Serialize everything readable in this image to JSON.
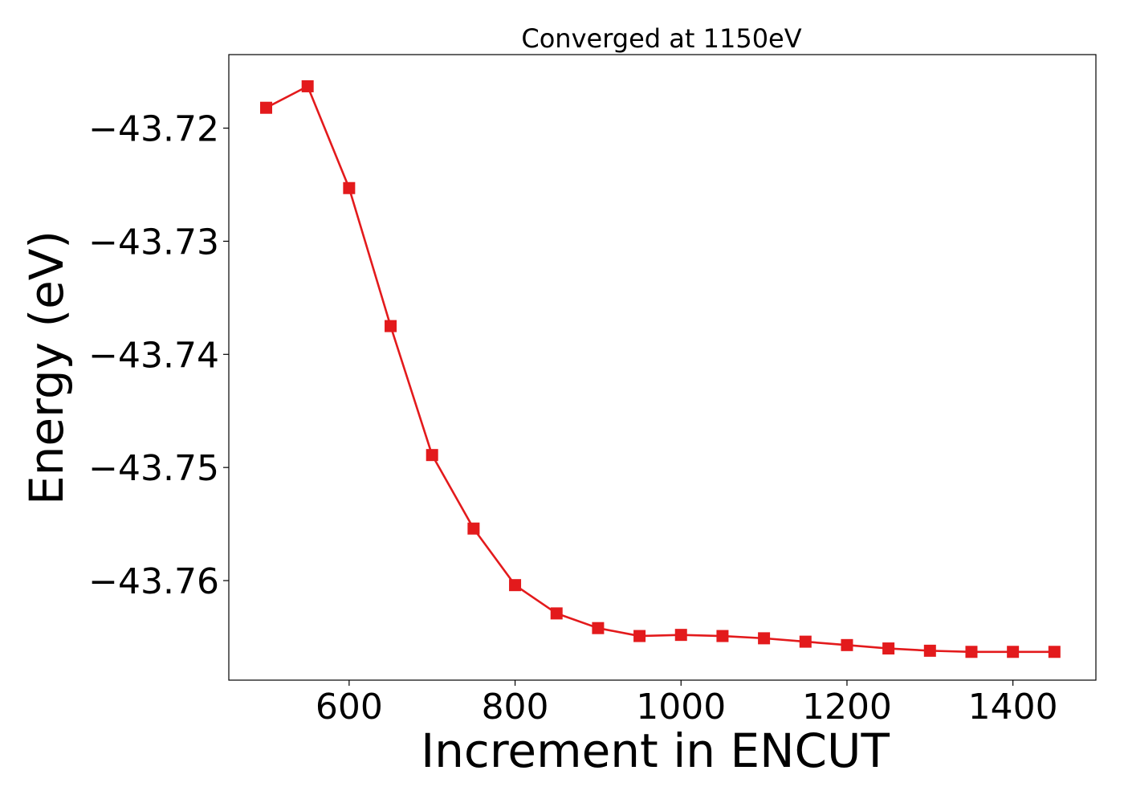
{
  "chart_data": {
    "type": "line",
    "title": "Converged at 1150eV",
    "xlabel": "Increment in ENCUT",
    "ylabel": "Energy (eV)",
    "xlim": [
      455,
      1500
    ],
    "ylim": [
      -43.7688,
      -43.7135
    ],
    "xticks": [
      600,
      800,
      1000,
      1200,
      1400
    ],
    "xtick_labels": [
      "600",
      "800",
      "1000",
      "1200",
      "1400"
    ],
    "yticks": [
      -43.72,
      -43.73,
      -43.74,
      -43.75,
      -43.76
    ],
    "ytick_labels": [
      "−43.72",
      "−43.73",
      "−43.74",
      "−43.75",
      "−43.76"
    ],
    "grid": false,
    "series": [
      {
        "color": "#e31a1c",
        "marker": "square",
        "x": [
          500,
          550,
          600,
          650,
          700,
          750,
          800,
          850,
          900,
          950,
          1000,
          1050,
          1100,
          1150,
          1200,
          1250,
          1300,
          1350,
          1400,
          1450
        ],
        "y": [
          -43.7182,
          -43.7163,
          -43.7253,
          -43.7375,
          -43.7489,
          -43.7554,
          -43.7604,
          -43.7629,
          -43.7642,
          -43.7649,
          -43.7648,
          -43.7649,
          -43.7651,
          -43.7654,
          -43.7657,
          -43.766,
          -43.7662,
          -43.7663,
          -43.7663,
          -43.7663
        ]
      }
    ]
  }
}
